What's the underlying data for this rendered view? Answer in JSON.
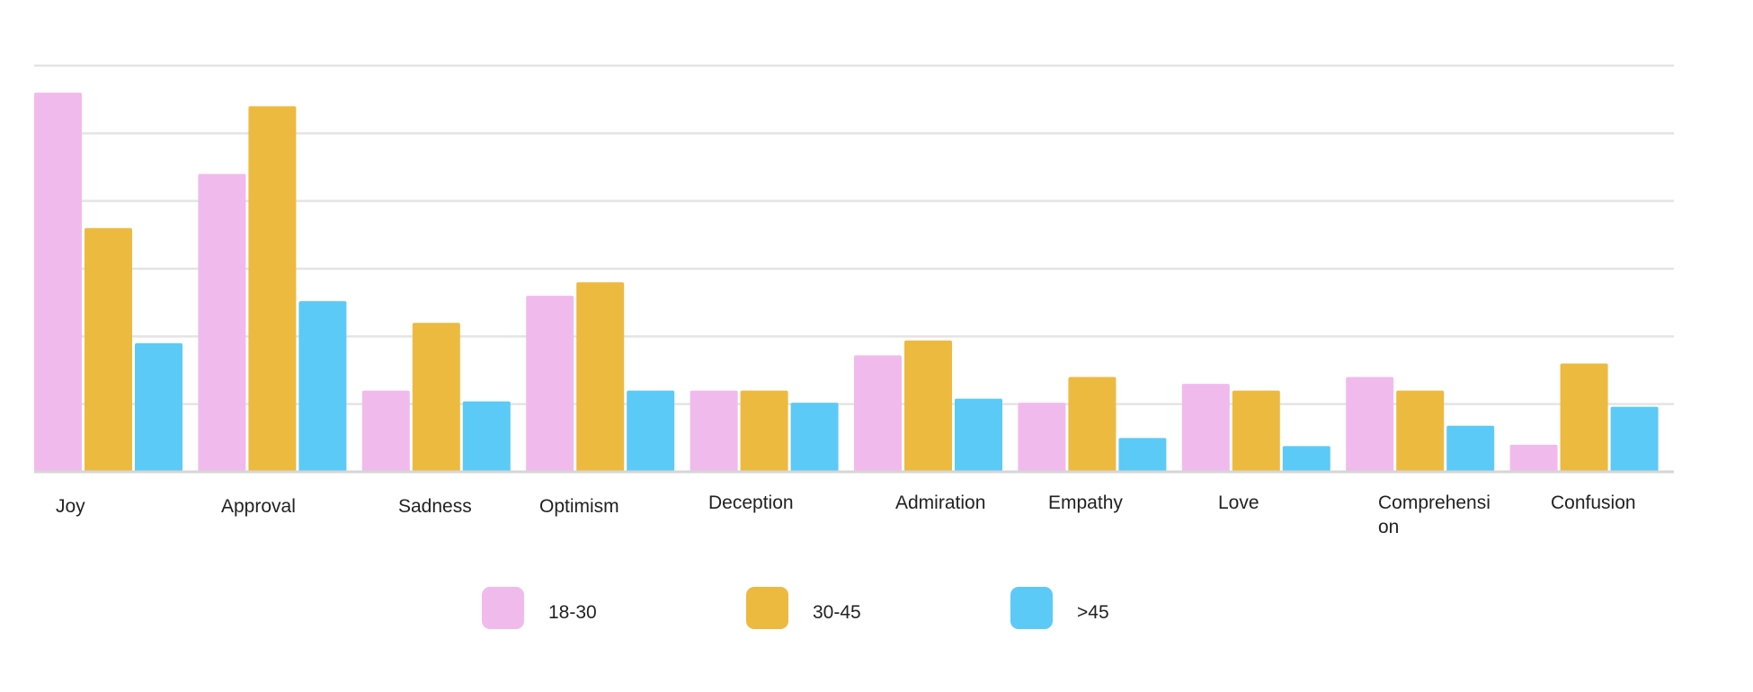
{
  "chart_data": {
    "type": "bar",
    "categories": [
      "Joy",
      "Approval",
      "Sadness",
      "Optimism",
      "Deception",
      "Admiration",
      "Empathy",
      "Love",
      "Comprehension",
      "Confusion"
    ],
    "category_display": [
      [
        "Joy"
      ],
      [
        "Approval"
      ],
      [
        "Sadness"
      ],
      [
        "Optimism"
      ],
      [
        "Deception"
      ],
      [
        "Admiration"
      ],
      [
        "Empathy"
      ],
      [
        "Love"
      ],
      [
        "Comprehensi",
        "on"
      ],
      [
        "Confusion"
      ]
    ],
    "series": [
      {
        "name": "18-30",
        "color": "#F0BBEC",
        "values": [
          28,
          22,
          6,
          13,
          6,
          8.6,
          5.1,
          6.5,
          7,
          2
        ]
      },
      {
        "name": "30-45",
        "color": "#EDBA40",
        "values": [
          18,
          27,
          11,
          14,
          6,
          9.7,
          7,
          6,
          6,
          8
        ]
      },
      {
        "name": ">45",
        "color": "#5CCAF6",
        "values": [
          9.5,
          12.6,
          5.2,
          6,
          5.1,
          5.4,
          2.5,
          1.9,
          3.4,
          4.8
        ]
      }
    ],
    "ylim": [
      0,
      30
    ],
    "grid": true,
    "legend_position": "bottom-center"
  }
}
